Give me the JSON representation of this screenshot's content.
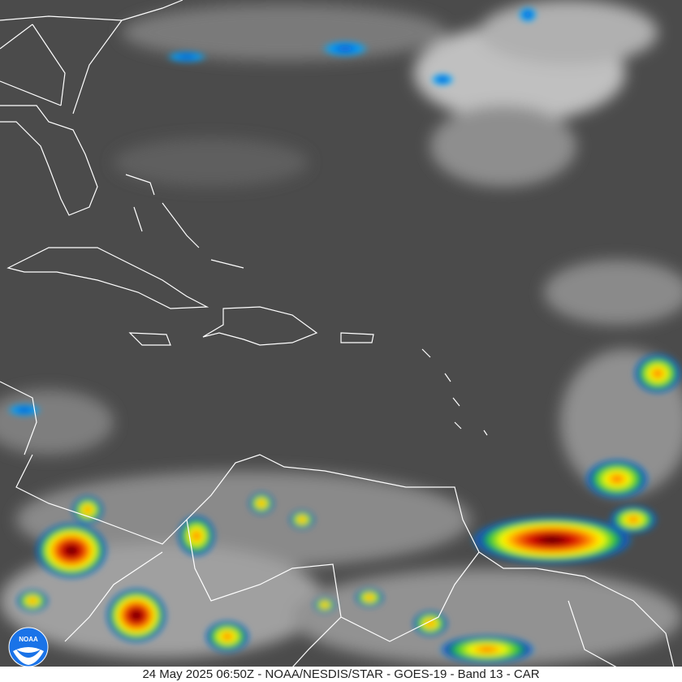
{
  "caption": "24 May 2025 06:50Z - NOAA/NESDIS/STAR - GOES-19 - Band 13 - CAR",
  "logo": {
    "text": "NOAA",
    "icon": "noaa-logo-icon",
    "color": "#1a73e8"
  },
  "imagery": {
    "background_color": "#4a4a4a",
    "cloud_color": "#c8c8c8",
    "coastline_color": "#ffffff",
    "convective_colors": [
      "#00b4ff",
      "#1040c0",
      "#20c040",
      "#ffff00",
      "#ff8000",
      "#e00000",
      "#400000"
    ]
  }
}
